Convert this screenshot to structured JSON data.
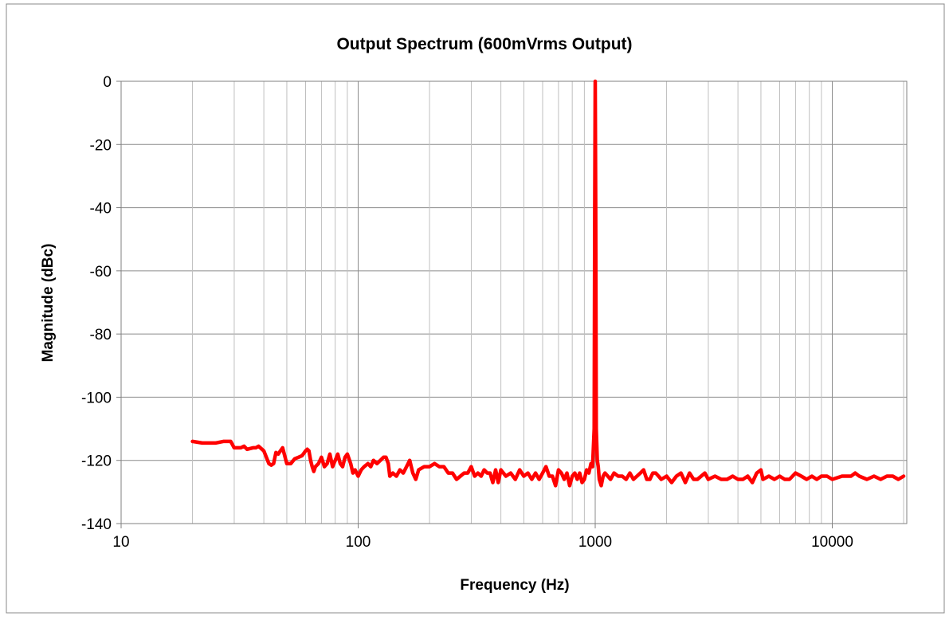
{
  "chart_data": {
    "type": "line",
    "title": "Output Spectrum (600mVrms Output)",
    "xlabel": "Frequency (Hz)",
    "ylabel": "Magnitude (dBc)",
    "x_scale": "log",
    "xlim": [
      10,
      20000
    ],
    "ylim": [
      -140,
      0
    ],
    "x_ticks": [
      10,
      100,
      1000,
      10000
    ],
    "x_tick_labels": [
      "10",
      "100",
      "1000",
      "10000"
    ],
    "y_ticks": [
      0,
      -20,
      -40,
      -60,
      -80,
      -100,
      -120,
      -140
    ],
    "y_tick_labels": [
      "0",
      "-20",
      "-40",
      "-60",
      "-80",
      "-100",
      "-120",
      "-140"
    ],
    "grid": true,
    "legend": "none",
    "series": [
      {
        "color": "#ff0000",
        "points": [
          [
            20,
            -114
          ],
          [
            22,
            -114.5
          ],
          [
            25,
            -114.5
          ],
          [
            27,
            -114
          ],
          [
            29,
            -114
          ],
          [
            30,
            -116
          ],
          [
            32,
            -116
          ],
          [
            33,
            -115.5
          ],
          [
            34,
            -116.5
          ],
          [
            36,
            -116
          ],
          [
            37,
            -116
          ],
          [
            38,
            -115.5
          ],
          [
            40,
            -117
          ],
          [
            41,
            -119
          ],
          [
            42,
            -121
          ],
          [
            43,
            -121.5
          ],
          [
            44,
            -121
          ],
          [
            45,
            -117.5
          ],
          [
            46,
            -118
          ],
          [
            47,
            -117
          ],
          [
            48,
            -116
          ],
          [
            50,
            -121
          ],
          [
            52,
            -121
          ],
          [
            54,
            -119.5
          ],
          [
            56,
            -119
          ],
          [
            58,
            -118.5
          ],
          [
            60,
            -117
          ],
          [
            61,
            -116.5
          ],
          [
            62,
            -117
          ],
          [
            63,
            -120
          ],
          [
            64,
            -122
          ],
          [
            65,
            -123.5
          ],
          [
            66,
            -122
          ],
          [
            68,
            -121
          ],
          [
            70,
            -119
          ],
          [
            72,
            -122
          ],
          [
            74,
            -121
          ],
          [
            76,
            -118
          ],
          [
            78,
            -122
          ],
          [
            80,
            -120
          ],
          [
            82,
            -118
          ],
          [
            84,
            -121
          ],
          [
            86,
            -122
          ],
          [
            88,
            -119
          ],
          [
            90,
            -118
          ],
          [
            93,
            -121
          ],
          [
            95,
            -124
          ],
          [
            97,
            -123
          ],
          [
            100,
            -125
          ],
          [
            103,
            -123
          ],
          [
            106,
            -122
          ],
          [
            110,
            -121
          ],
          [
            113,
            -122
          ],
          [
            116,
            -120
          ],
          [
            120,
            -121
          ],
          [
            124,
            -120
          ],
          [
            128,
            -119
          ],
          [
            131,
            -119
          ],
          [
            134,
            -121
          ],
          [
            136,
            -125
          ],
          [
            140,
            -124
          ],
          [
            145,
            -125
          ],
          [
            150,
            -123
          ],
          [
            155,
            -124
          ],
          [
            160,
            -122
          ],
          [
            165,
            -120
          ],
          [
            170,
            -124
          ],
          [
            175,
            -126
          ],
          [
            180,
            -123
          ],
          [
            190,
            -122
          ],
          [
            200,
            -122
          ],
          [
            210,
            -121
          ],
          [
            220,
            -122
          ],
          [
            230,
            -122
          ],
          [
            240,
            -124
          ],
          [
            250,
            -124
          ],
          [
            260,
            -126
          ],
          [
            270,
            -125
          ],
          [
            280,
            -124
          ],
          [
            290,
            -124
          ],
          [
            300,
            -122
          ],
          [
            310,
            -125
          ],
          [
            320,
            -124
          ],
          [
            330,
            -125
          ],
          [
            340,
            -123
          ],
          [
            350,
            -124
          ],
          [
            360,
            -124
          ],
          [
            370,
            -127
          ],
          [
            380,
            -123
          ],
          [
            390,
            -127
          ],
          [
            400,
            -123
          ],
          [
            420,
            -125
          ],
          [
            440,
            -124
          ],
          [
            460,
            -126
          ],
          [
            480,
            -123
          ],
          [
            500,
            -125
          ],
          [
            520,
            -124
          ],
          [
            540,
            -126
          ],
          [
            560,
            -124
          ],
          [
            580,
            -126
          ],
          [
            600,
            -124
          ],
          [
            620,
            -122
          ],
          [
            640,
            -125
          ],
          [
            660,
            -125
          ],
          [
            680,
            -128
          ],
          [
            700,
            -123
          ],
          [
            720,
            -124
          ],
          [
            740,
            -126
          ],
          [
            760,
            -124
          ],
          [
            780,
            -128
          ],
          [
            800,
            -125
          ],
          [
            820,
            -124
          ],
          [
            840,
            -126
          ],
          [
            860,
            -124
          ],
          [
            880,
            -127
          ],
          [
            900,
            -126
          ],
          [
            920,
            -123
          ],
          [
            940,
            -124
          ],
          [
            960,
            -121
          ],
          [
            975,
            -122
          ],
          [
            990,
            -110
          ],
          [
            995,
            -40
          ],
          [
            1000,
            0
          ],
          [
            1005,
            -40
          ],
          [
            1010,
            -110
          ],
          [
            1020,
            -120
          ],
          [
            1030,
            -122
          ],
          [
            1040,
            -126
          ],
          [
            1060,
            -128
          ],
          [
            1080,
            -125
          ],
          [
            1100,
            -124
          ],
          [
            1130,
            -125
          ],
          [
            1160,
            -126
          ],
          [
            1200,
            -124
          ],
          [
            1250,
            -125
          ],
          [
            1300,
            -125
          ],
          [
            1350,
            -126
          ],
          [
            1400,
            -124
          ],
          [
            1450,
            -126
          ],
          [
            1500,
            -125
          ],
          [
            1550,
            -124
          ],
          [
            1600,
            -123
          ],
          [
            1650,
            -126
          ],
          [
            1700,
            -126
          ],
          [
            1750,
            -124
          ],
          [
            1800,
            -124
          ],
          [
            1850,
            -125
          ],
          [
            1900,
            -126
          ],
          [
            2000,
            -125
          ],
          [
            2100,
            -127
          ],
          [
            2200,
            -125
          ],
          [
            2300,
            -124
          ],
          [
            2400,
            -127
          ],
          [
            2500,
            -124
          ],
          [
            2600,
            -126
          ],
          [
            2700,
            -126
          ],
          [
            2800,
            -125
          ],
          [
            2900,
            -124
          ],
          [
            3000,
            -126
          ],
          [
            3200,
            -125
          ],
          [
            3400,
            -126
          ],
          [
            3600,
            -126
          ],
          [
            3800,
            -125
          ],
          [
            4000,
            -126
          ],
          [
            4200,
            -126
          ],
          [
            4400,
            -125
          ],
          [
            4600,
            -127
          ],
          [
            4800,
            -124
          ],
          [
            5000,
            -123
          ],
          [
            5100,
            -126
          ],
          [
            5400,
            -125
          ],
          [
            5700,
            -126
          ],
          [
            6000,
            -125
          ],
          [
            6300,
            -126
          ],
          [
            6600,
            -126
          ],
          [
            7000,
            -124
          ],
          [
            7400,
            -125
          ],
          [
            7800,
            -126
          ],
          [
            8200,
            -125
          ],
          [
            8600,
            -126
          ],
          [
            9000,
            -125
          ],
          [
            9500,
            -125
          ],
          [
            10000,
            -126
          ],
          [
            11000,
            -125
          ],
          [
            12000,
            -125
          ],
          [
            12500,
            -124
          ],
          [
            13000,
            -125
          ],
          [
            14000,
            -126
          ],
          [
            15000,
            -125
          ],
          [
            16000,
            -126
          ],
          [
            17000,
            -125
          ],
          [
            18000,
            -125
          ],
          [
            19000,
            -126
          ],
          [
            20000,
            -125
          ]
        ]
      }
    ]
  }
}
